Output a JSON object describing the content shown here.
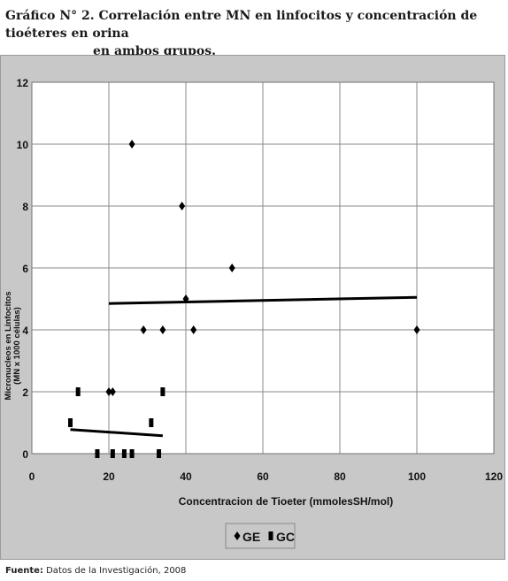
{
  "caption": {
    "prefix": "Gráfico N° 2.",
    "line1": "Correlación entre MN en linfocitos y concentración de tioéteres en orina",
    "line2": "en ambos grupos."
  },
  "source": {
    "label": "Fuente:",
    "text": "Datos de la Investigación, 2008"
  },
  "chart_data": {
    "type": "scatter",
    "title": "",
    "xlabel": "Concentracion de Tioeter (mmolesSH/mol)",
    "ylabel_line1": "Micronucleos en Linfocitos",
    "ylabel_line2": "(MN x 1000 células)",
    "xlim": [
      0,
      120
    ],
    "ylim": [
      0,
      12
    ],
    "x_ticks": [
      "0",
      "20",
      "40",
      "60",
      "80",
      "100",
      "120"
    ],
    "y_ticks": [
      "0",
      "2",
      "4",
      "6",
      "8",
      "10",
      "12"
    ],
    "grid": true,
    "legend_position": "bottom-center",
    "series": [
      {
        "name": "GE",
        "marker": "diamond",
        "color": "#000000",
        "points": [
          [
            20,
            2
          ],
          [
            21,
            2
          ],
          [
            26,
            10
          ],
          [
            29,
            4
          ],
          [
            34,
            4
          ],
          [
            39,
            8
          ],
          [
            40,
            5
          ],
          [
            42,
            4
          ],
          [
            52,
            6
          ],
          [
            100,
            4
          ]
        ],
        "trendline": [
          [
            20,
            4.85
          ],
          [
            100,
            5.05
          ]
        ]
      },
      {
        "name": "GC",
        "marker": "bar",
        "color": "#000000",
        "points": [
          [
            10,
            1
          ],
          [
            12,
            2
          ],
          [
            17,
            0
          ],
          [
            21,
            0
          ],
          [
            24,
            0
          ],
          [
            26,
            0
          ],
          [
            31,
            1
          ],
          [
            33,
            0
          ],
          [
            34,
            2
          ]
        ],
        "trendline": [
          [
            10,
            0.78
          ],
          [
            34,
            0.58
          ]
        ]
      }
    ]
  }
}
